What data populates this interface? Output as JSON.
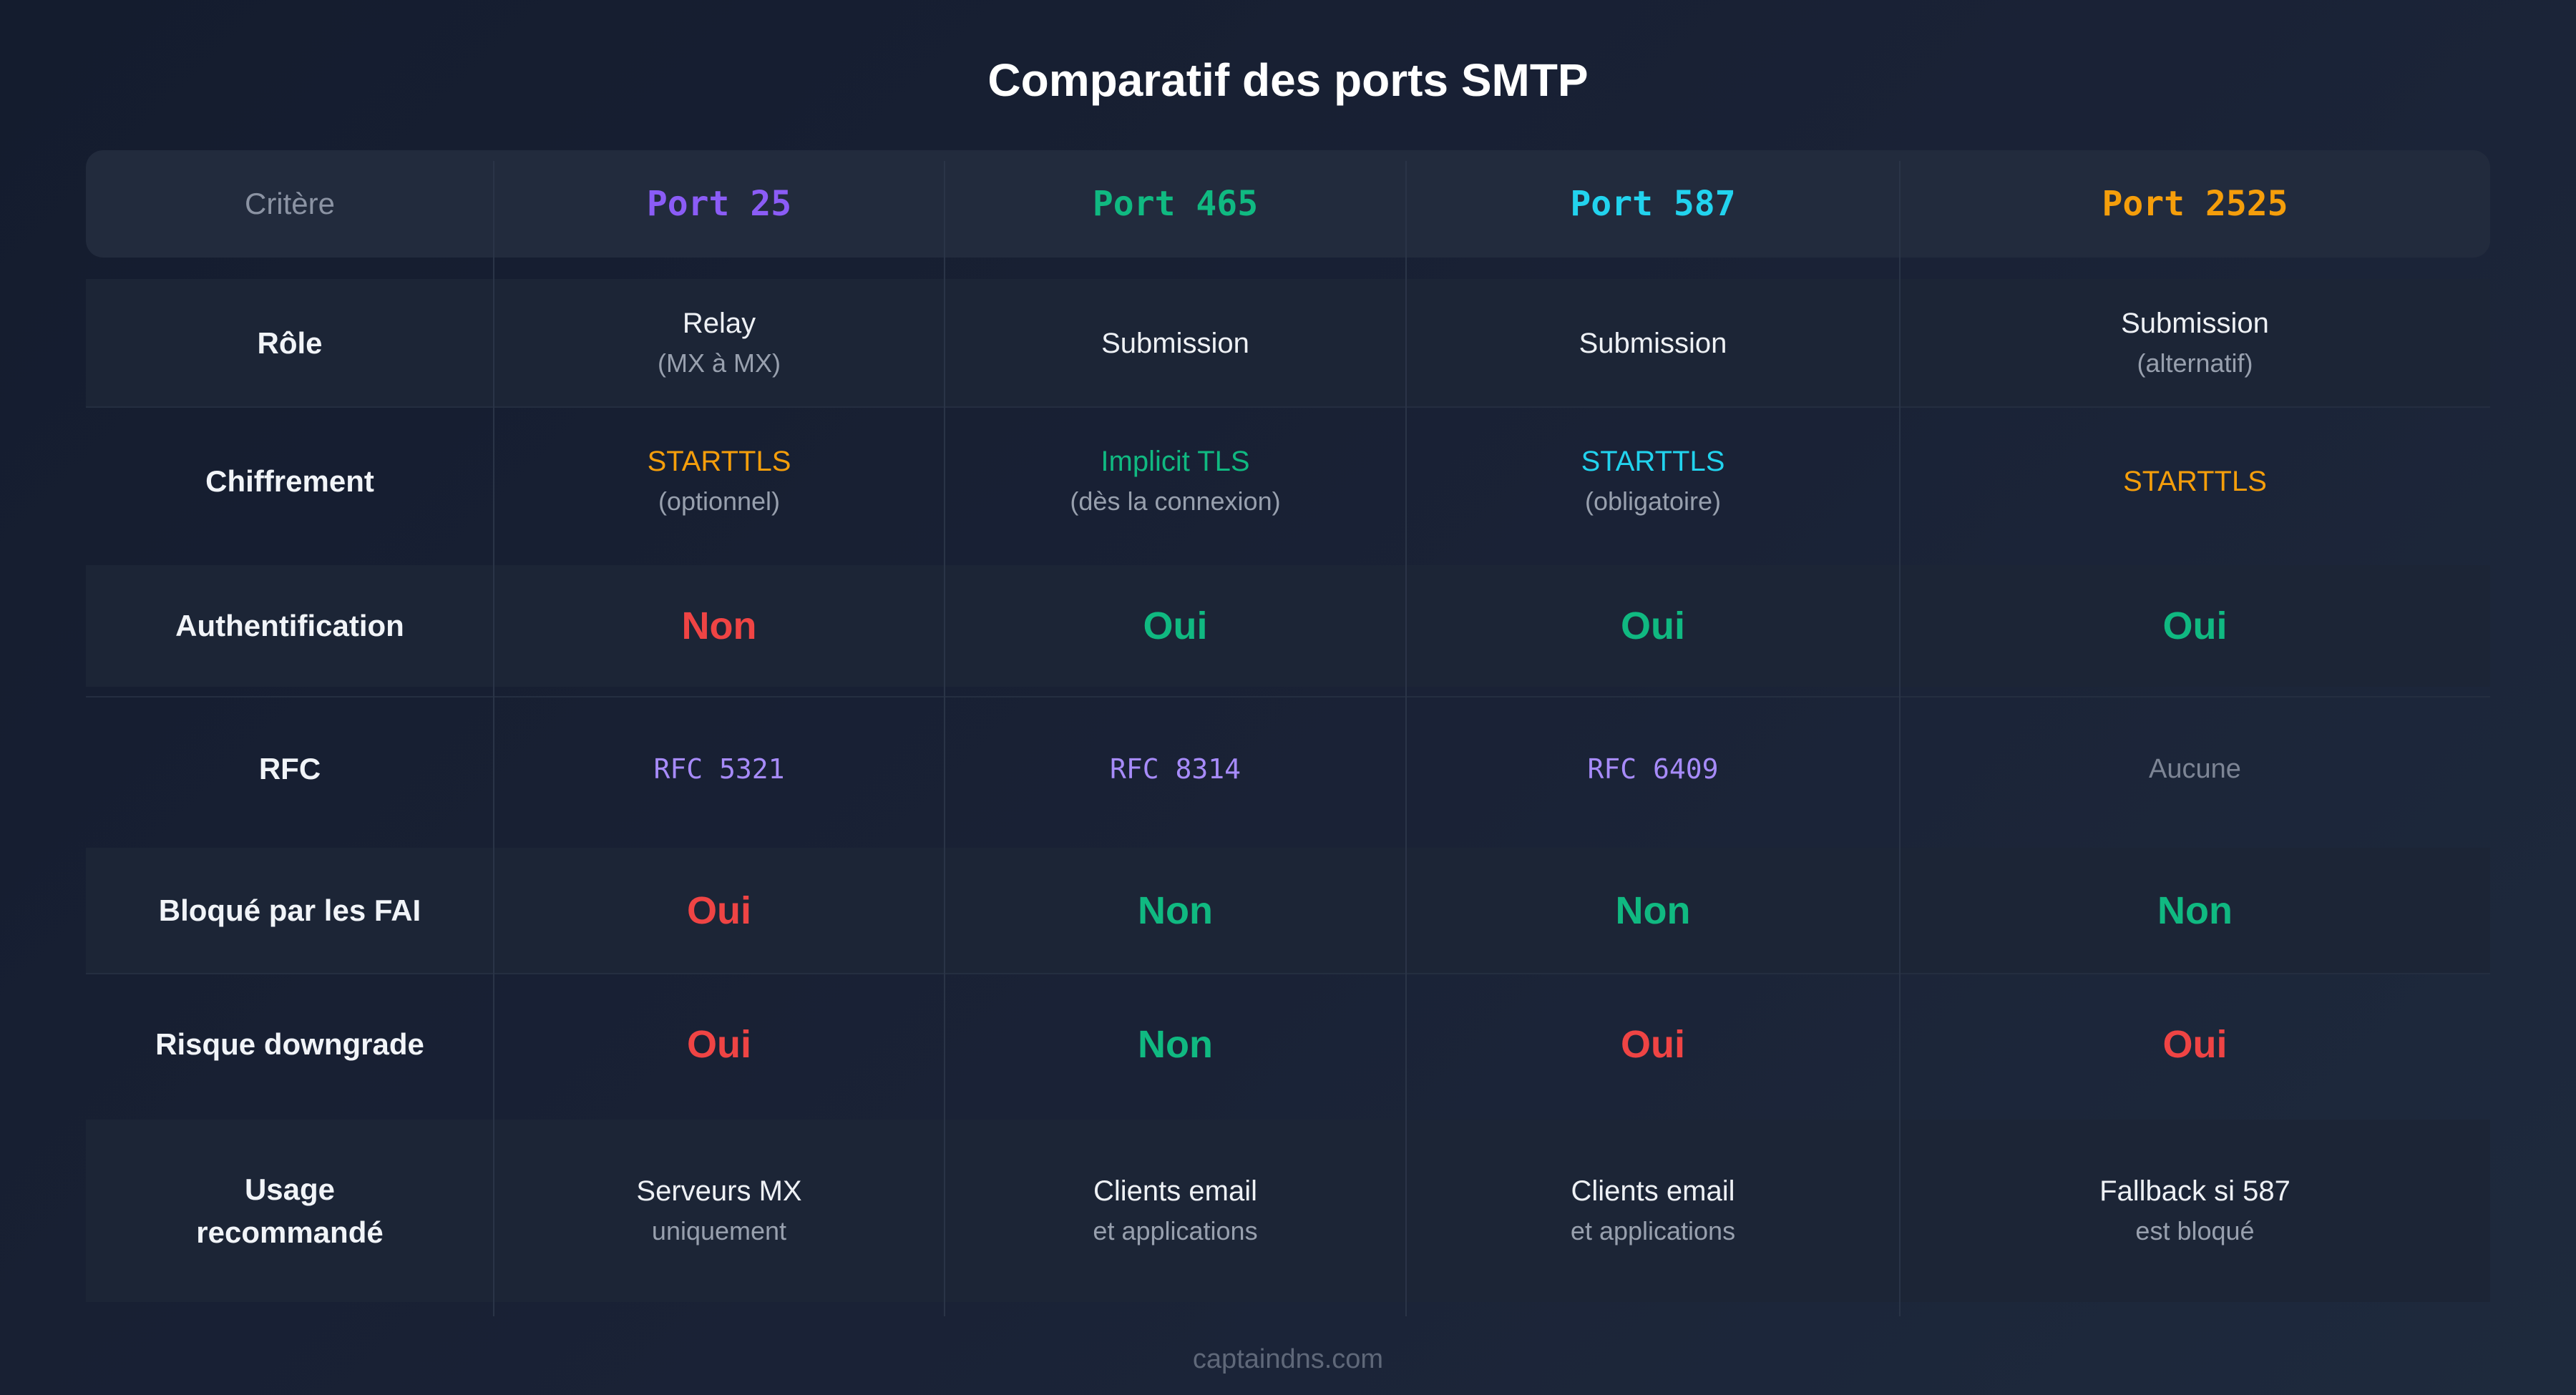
{
  "title": "Comparatif des ports SMTP",
  "footer": "captaindns.com",
  "colors": {
    "purple": "#8b5cf6",
    "green": "#10b981",
    "cyan": "#22d3ee",
    "orange": "#f59e0b",
    "red": "#ef4444",
    "lavender": "#a78bfa"
  },
  "header": {
    "criterion_label": "Critère",
    "ports": [
      "Port 25",
      "Port 465",
      "Port 587",
      "Port 2525"
    ]
  },
  "rows": [
    {
      "criterion": "Rôle",
      "cells": [
        {
          "main": "Relay",
          "sub": "(MX à MX)"
        },
        {
          "main": "Submission"
        },
        {
          "main": "Submission"
        },
        {
          "main": "Submission",
          "sub": "(alternatif)"
        }
      ]
    },
    {
      "criterion": "Chiffrement",
      "cells": [
        {
          "main": "STARTTLS",
          "sub": "(optionnel)"
        },
        {
          "main": "Implicit TLS",
          "sub": "(dès la connexion)"
        },
        {
          "main": "STARTTLS",
          "sub": "(obligatoire)"
        },
        {
          "main": "STARTTLS"
        }
      ]
    },
    {
      "criterion": "Authentification",
      "cells": [
        {
          "main": "Non"
        },
        {
          "main": "Oui"
        },
        {
          "main": "Oui"
        },
        {
          "main": "Oui"
        }
      ]
    },
    {
      "criterion": "RFC",
      "cells": [
        {
          "main": "RFC 5321"
        },
        {
          "main": "RFC 8314"
        },
        {
          "main": "RFC 6409"
        },
        {
          "main": "Aucune"
        }
      ]
    },
    {
      "criterion": "Bloqué par les FAI",
      "cells": [
        {
          "main": "Oui"
        },
        {
          "main": "Non"
        },
        {
          "main": "Non"
        },
        {
          "main": "Non"
        }
      ]
    },
    {
      "criterion": "Risque downgrade",
      "cells": [
        {
          "main": "Oui"
        },
        {
          "main": "Non"
        },
        {
          "main": "Oui"
        },
        {
          "main": "Oui"
        }
      ]
    },
    {
      "criterion": "Usage\nrecommandé",
      "cells": [
        {
          "main": "Serveurs MX",
          "sub": "uniquement"
        },
        {
          "main": "Clients email",
          "sub": "et applications"
        },
        {
          "main": "Clients email",
          "sub": "et applications"
        },
        {
          "main": "Fallback si 587",
          "sub": "est bloqué"
        }
      ]
    }
  ]
}
